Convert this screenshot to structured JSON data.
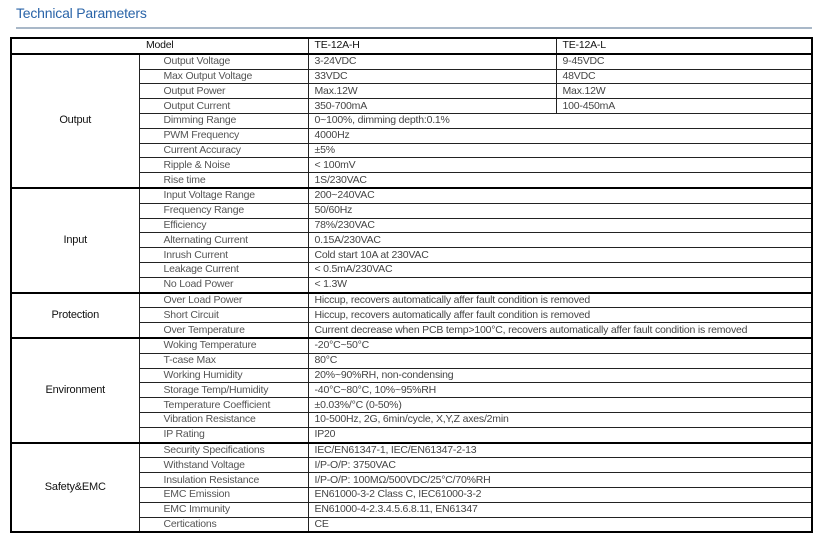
{
  "title": "Technical Parameters",
  "header": {
    "model": "Model",
    "col_h": "TE-12A-H",
    "col_l": "TE-12A-L"
  },
  "groups": [
    {
      "name": "Output",
      "rows": [
        {
          "param": "Output Voltage",
          "h": "3-24VDC",
          "l": "9-45VDC"
        },
        {
          "param": "Max Output Voltage",
          "h": "33VDC",
          "l": "48VDC"
        },
        {
          "param": "Output Power",
          "h": "Max.12W",
          "l": "Max.12W"
        },
        {
          "param": "Output Current",
          "h": "350-700mA",
          "l": "100-450mA"
        },
        {
          "param": "Dimming Range",
          "value": "0~100%, dimming depth:0.1%"
        },
        {
          "param": "PWM Frequency",
          "value": "4000Hz"
        },
        {
          "param": "Current Accuracy",
          "value": "±5%"
        },
        {
          "param": "Ripple & Noise",
          "value": "< 100mV"
        },
        {
          "param": "Rise time",
          "value": "1S/230VAC"
        }
      ]
    },
    {
      "name": "Input",
      "rows": [
        {
          "param": "Input Voltage Range",
          "value": "200~240VAC"
        },
        {
          "param": "Frequency Range",
          "value": "50/60Hz"
        },
        {
          "param": "Efficiency",
          "value": "78%/230VAC"
        },
        {
          "param": "Alternating Current",
          "value": "0.15A/230VAC"
        },
        {
          "param": "Inrush Current",
          "value": "Cold start 10A at 230VAC"
        },
        {
          "param": "Leakage Current",
          "value": "< 0.5mA/230VAC"
        },
        {
          "param": "No Load Power",
          "value": "< 1.3W"
        }
      ]
    },
    {
      "name": "Protection",
      "rows": [
        {
          "param": "Over Load Power",
          "value": "Hiccup, recovers automatically affer fault condition is removed"
        },
        {
          "param": "Short Circuit",
          "value": "Hiccup, recovers automatically affer fault condition is removed"
        },
        {
          "param": "Over Temperature",
          "value": "Current decrease when PCB temp>100°C, recovers automatically affer fault condition is removed"
        }
      ]
    },
    {
      "name": "Environment",
      "rows": [
        {
          "param": "Woking Temperature",
          "value": "-20°C~50°C"
        },
        {
          "param": "T-case Max",
          "value": "80°C"
        },
        {
          "param": "Working Humidity",
          "value": "20%~90%RH, non-condensing"
        },
        {
          "param": "Storage Temp/Humidity",
          "value": "-40°C~80°C, 10%~95%RH"
        },
        {
          "param": "Temperature Coefficient",
          "value": "±0.03%/°C (0-50%)"
        },
        {
          "param": "Vibration Resistance",
          "value": "10-500Hz, 2G, 6min/cycle,  X,Y,Z axes/2min"
        },
        {
          "param": "IP Rating",
          "value": "IP20"
        }
      ]
    },
    {
      "name": "Safety&EMC",
      "rows": [
        {
          "param": "Security Specifications",
          "value": "IEC/EN61347-1, IEC/EN61347-2-13"
        },
        {
          "param": "Withstand Voltage",
          "value": "I/P-O/P: 3750VAC"
        },
        {
          "param": "Insulation Resistance",
          "value": "I/P-O/P: 100MΩ/500VDC/25°C/70%RH"
        },
        {
          "param": "EMC Emission",
          "value": "EN61000-3-2 Class C, IEC61000-3-2"
        },
        {
          "param": "EMC Immunity",
          "value": "EN61000-4-2.3.4.5.6.8.11, EN61347"
        },
        {
          "param": "Certications",
          "value": "CE"
        }
      ]
    }
  ]
}
